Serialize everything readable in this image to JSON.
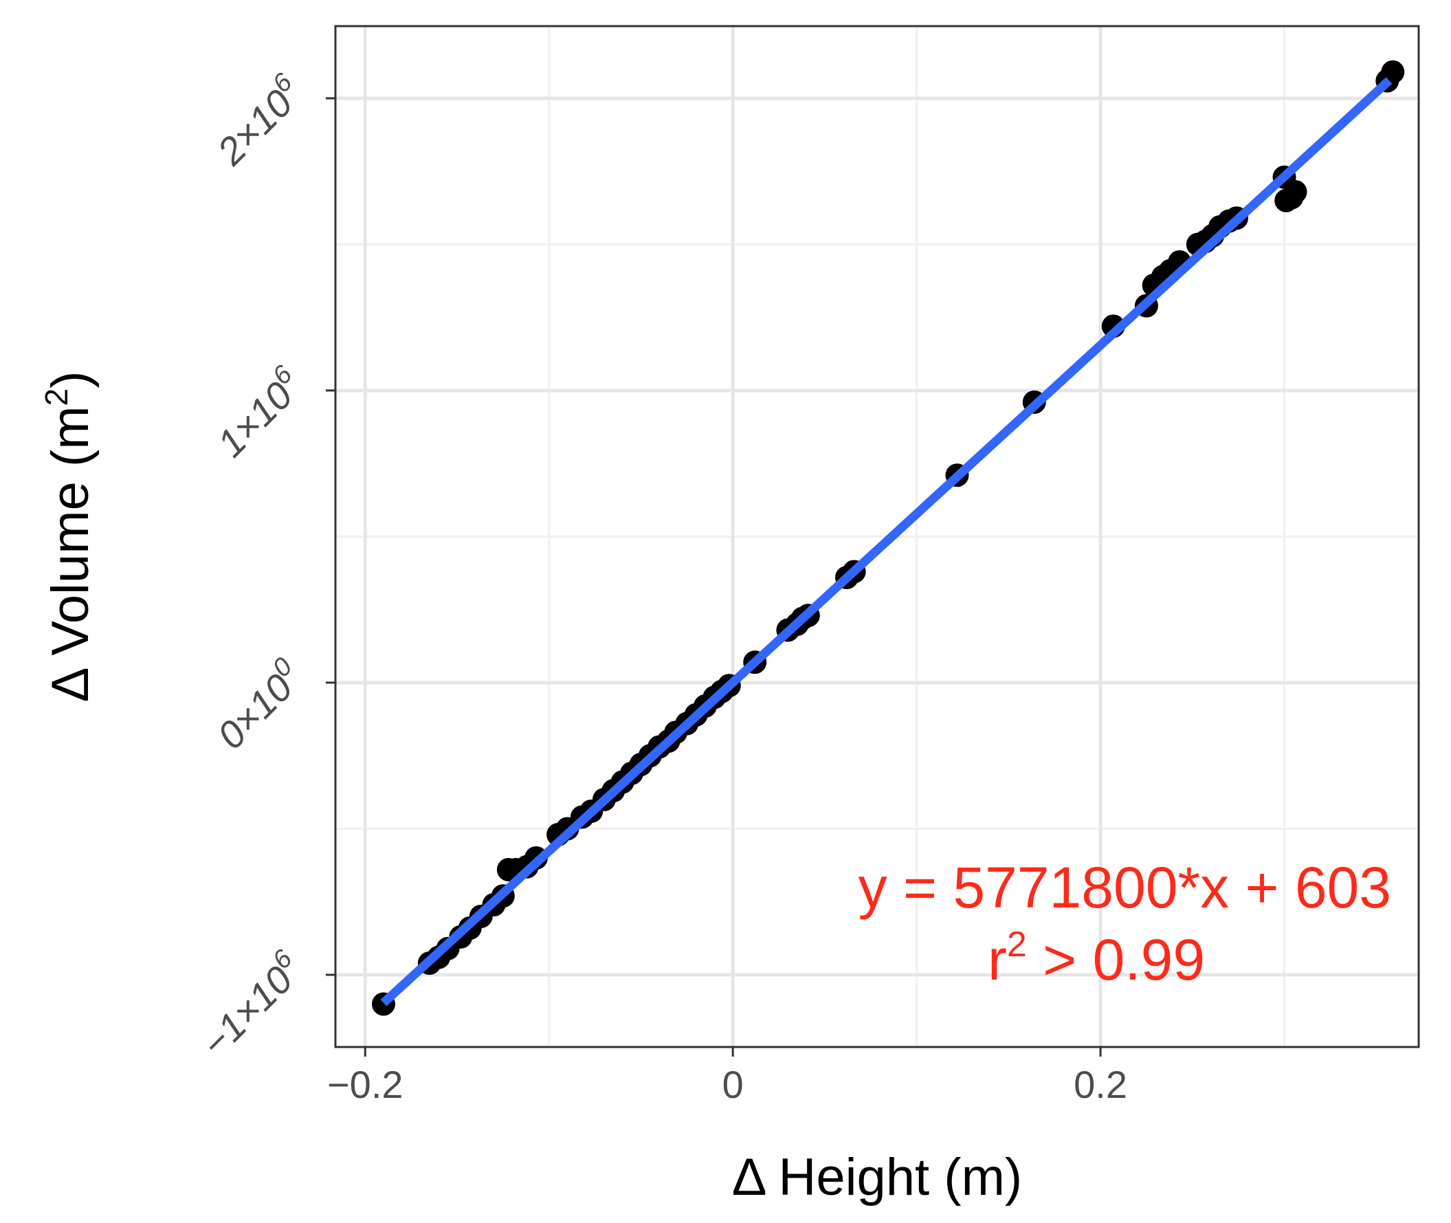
{
  "chart_data": {
    "type": "scatter",
    "xlabel": {
      "prefix": "Δ Height (m)"
    },
    "ylabel": {
      "prefix": "Δ Volume (m",
      "sup": "2",
      "suffix": ")"
    },
    "xlim": [
      -0.2,
      0.365
    ],
    "ylim": [
      -1.25,
      2.25
    ],
    "y_unit_note": "y values in units of 10^6 m^2",
    "x_ticks": [
      {
        "value": -0.2,
        "label": "−0.2"
      },
      {
        "value": 0,
        "label": "0"
      },
      {
        "value": 0.2,
        "label": "0.2"
      }
    ],
    "y_ticks": [
      {
        "value": -1,
        "mantissa": "−1",
        "base": "×10",
        "exp": "6"
      },
      {
        "value": 0,
        "mantissa": "0",
        "base": "×10",
        "exp": "0"
      },
      {
        "value": 1,
        "mantissa": "1",
        "base": "×10",
        "exp": "6"
      },
      {
        "value": 2,
        "mantissa": "2",
        "base": "×10",
        "exp": "6"
      }
    ],
    "grid": true,
    "points": [
      {
        "x": -0.19,
        "y": -1.1
      },
      {
        "x": -0.165,
        "y": -0.96
      },
      {
        "x": -0.16,
        "y": -0.94
      },
      {
        "x": -0.155,
        "y": -0.91
      },
      {
        "x": -0.148,
        "y": -0.87
      },
      {
        "x": -0.143,
        "y": -0.84
      },
      {
        "x": -0.137,
        "y": -0.8
      },
      {
        "x": -0.13,
        "y": -0.76
      },
      {
        "x": -0.125,
        "y": -0.73
      },
      {
        "x": -0.122,
        "y": -0.64
      },
      {
        "x": -0.118,
        "y": -0.64
      },
      {
        "x": -0.112,
        "y": -0.63
      },
      {
        "x": -0.107,
        "y": -0.6
      },
      {
        "x": -0.095,
        "y": -0.52
      },
      {
        "x": -0.09,
        "y": -0.5
      },
      {
        "x": -0.082,
        "y": -0.46
      },
      {
        "x": -0.077,
        "y": -0.44
      },
      {
        "x": -0.07,
        "y": -0.4
      },
      {
        "x": -0.065,
        "y": -0.37
      },
      {
        "x": -0.06,
        "y": -0.34
      },
      {
        "x": -0.055,
        "y": -0.31
      },
      {
        "x": -0.05,
        "y": -0.28
      },
      {
        "x": -0.045,
        "y": -0.25
      },
      {
        "x": -0.04,
        "y": -0.22
      },
      {
        "x": -0.035,
        "y": -0.2
      },
      {
        "x": -0.031,
        "y": -0.17
      },
      {
        "x": -0.025,
        "y": -0.14
      },
      {
        "x": -0.02,
        "y": -0.11
      },
      {
        "x": -0.015,
        "y": -0.08
      },
      {
        "x": -0.01,
        "y": -0.05
      },
      {
        "x": -0.006,
        "y": -0.03
      },
      {
        "x": -0.002,
        "y": -0.01
      },
      {
        "x": 0.012,
        "y": 0.07
      },
      {
        "x": 0.03,
        "y": 0.18
      },
      {
        "x": 0.035,
        "y": 0.2
      },
      {
        "x": 0.038,
        "y": 0.22
      },
      {
        "x": 0.041,
        "y": 0.23
      },
      {
        "x": 0.062,
        "y": 0.36
      },
      {
        "x": 0.066,
        "y": 0.38
      },
      {
        "x": 0.122,
        "y": 0.71
      },
      {
        "x": 0.164,
        "y": 0.96
      },
      {
        "x": 0.207,
        "y": 1.22
      },
      {
        "x": 0.225,
        "y": 1.29
      },
      {
        "x": 0.229,
        "y": 1.36
      },
      {
        "x": 0.234,
        "y": 1.39
      },
      {
        "x": 0.238,
        "y": 1.41
      },
      {
        "x": 0.243,
        "y": 1.44
      },
      {
        "x": 0.253,
        "y": 1.5
      },
      {
        "x": 0.257,
        "y": 1.51
      },
      {
        "x": 0.261,
        "y": 1.53
      },
      {
        "x": 0.265,
        "y": 1.56
      },
      {
        "x": 0.27,
        "y": 1.58
      },
      {
        "x": 0.274,
        "y": 1.59
      },
      {
        "x": 0.3,
        "y": 1.73
      },
      {
        "x": 0.301,
        "y": 1.65
      },
      {
        "x": 0.304,
        "y": 1.66
      },
      {
        "x": 0.306,
        "y": 1.68
      },
      {
        "x": 0.356,
        "y": 2.06
      },
      {
        "x": 0.359,
        "y": 2.09
      }
    ],
    "fit_line": {
      "slope": 5771800,
      "intercept": 603,
      "x_start": -0.19,
      "x_end": 0.357,
      "color": "#3366ff"
    },
    "point_color": "#000000",
    "annotation": {
      "line1": "y = 5771800*x + 603",
      "line2_prefix": "r",
      "line2_sup": "2",
      "line2_suffix": " > 0.99",
      "color": "#ff2a1a",
      "placement": "bottom-right"
    }
  }
}
